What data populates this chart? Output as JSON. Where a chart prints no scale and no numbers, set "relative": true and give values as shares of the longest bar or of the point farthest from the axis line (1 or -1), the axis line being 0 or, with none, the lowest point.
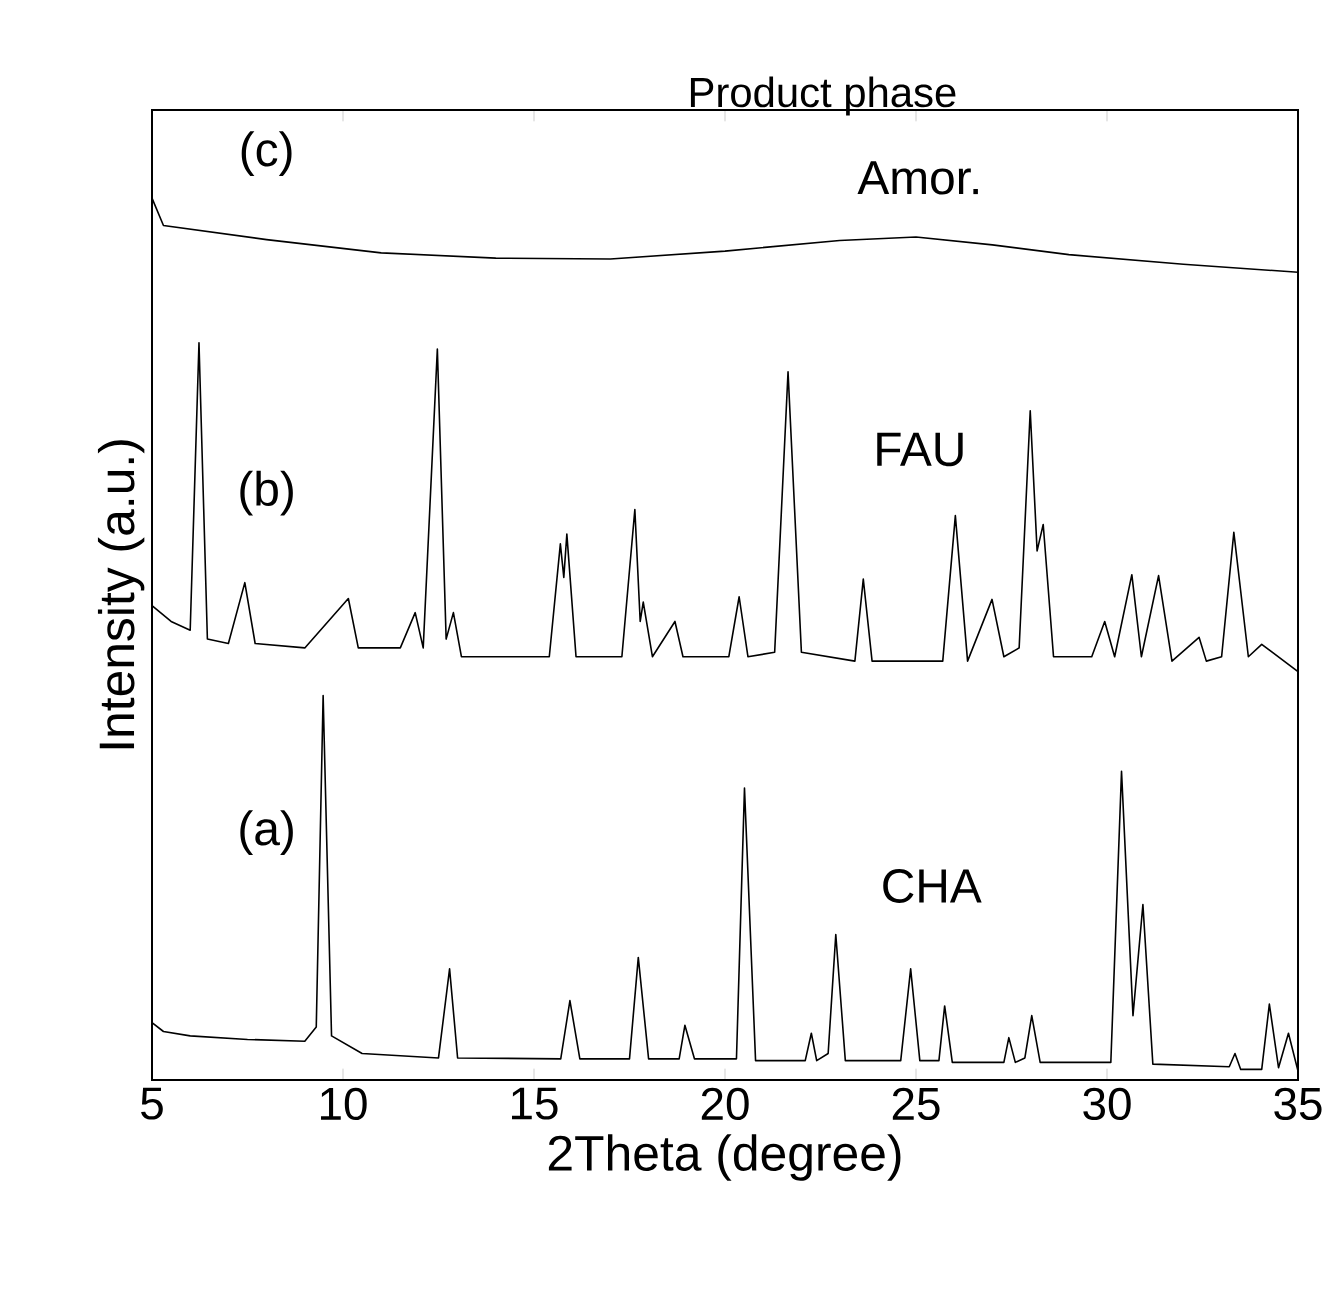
{
  "chart_data": {
    "type": "line",
    "title": "Product phase",
    "xlabel": "2Theta (degree)",
    "ylabel": "Intensity (a.u.)",
    "relative": true,
    "tick_labels": "x",
    "xlim": [
      5,
      35
    ],
    "xticks": [
      5,
      10,
      15,
      20,
      25,
      30,
      35
    ],
    "grid": false,
    "marker": "none",
    "line_style": "solid",
    "series": [
      {
        "color": "#000000",
        "x": [
          5,
          5.3,
          6,
          7.5,
          9.0,
          9.3,
          9.48,
          9.7,
          10.5,
          12.5,
          12.79,
          13.0,
          15.7,
          15.94,
          16.2,
          17.5,
          17.73,
          18.0,
          18.8,
          18.95,
          19.2,
          20.3,
          20.51,
          20.8,
          22.1,
          22.26,
          22.4,
          22.7,
          22.9,
          23.15,
          24.6,
          24.86,
          25.1,
          25.6,
          25.75,
          25.95,
          27.3,
          27.43,
          27.6,
          27.85,
          28.03,
          28.25,
          30.1,
          30.38,
          30.68,
          30.94,
          31.2,
          33.2,
          33.35,
          33.5,
          34.05,
          34.25,
          34.49,
          34.75,
          35
        ],
        "values": [
          0.065,
          0.055,
          0.05,
          0.046,
          0.044,
          0.06,
          0.436,
          0.05,
          0.03,
          0.025,
          0.126,
          0.025,
          0.024,
          0.09,
          0.024,
          0.024,
          0.139,
          0.024,
          0.024,
          0.062,
          0.024,
          0.024,
          0.331,
          0.022,
          0.022,
          0.053,
          0.022,
          0.03,
          0.165,
          0.022,
          0.022,
          0.126,
          0.022,
          0.022,
          0.084,
          0.02,
          0.02,
          0.048,
          0.02,
          0.025,
          0.073,
          0.02,
          0.02,
          0.35,
          0.073,
          0.199,
          0.018,
          0.015,
          0.03,
          0.012,
          0.012,
          0.086,
          0.014,
          0.053,
          0.01
        ]
      },
      {
        "color": "#000000",
        "x": [
          5,
          5.5,
          6.0,
          6.23,
          6.45,
          7.0,
          7.43,
          7.7,
          9,
          10.14,
          10.4,
          11.5,
          11.89,
          12.1,
          12.47,
          12.7,
          12.89,
          13.1,
          15.4,
          15.69,
          15.78,
          15.86,
          16.1,
          17.3,
          17.64,
          17.78,
          17.86,
          18.1,
          18.69,
          18.9,
          20.1,
          20.37,
          20.6,
          21.3,
          21.65,
          22.0,
          23.4,
          23.62,
          23.85,
          25.7,
          26.03,
          26.35,
          26.99,
          27.3,
          27.7,
          27.99,
          28.17,
          28.33,
          28.6,
          29.6,
          29.94,
          30.2,
          30.65,
          30.9,
          31.35,
          31.7,
          32.41,
          32.6,
          33.0,
          33.32,
          33.7,
          34.05,
          35
        ],
        "values": [
          0.538,
          0.52,
          0.51,
          0.836,
          0.5,
          0.495,
          0.564,
          0.495,
          0.49,
          0.546,
          0.49,
          0.49,
          0.53,
          0.49,
          0.829,
          0.5,
          0.53,
          0.48,
          0.48,
          0.608,
          0.57,
          0.619,
          0.48,
          0.48,
          0.647,
          0.52,
          0.542,
          0.48,
          0.52,
          0.48,
          0.48,
          0.548,
          0.48,
          0.485,
          0.803,
          0.485,
          0.475,
          0.568,
          0.475,
          0.475,
          0.64,
          0.475,
          0.545,
          0.48,
          0.49,
          0.759,
          0.6,
          0.63,
          0.48,
          0.48,
          0.52,
          0.48,
          0.573,
          0.48,
          0.572,
          0.475,
          0.502,
          0.475,
          0.48,
          0.621,
          0.48,
          0.494,
          0.463
        ]
      },
      {
        "color": "#000000",
        "x": [
          5,
          5.3,
          8,
          11,
          14,
          17,
          20,
          23,
          25,
          27,
          29,
          32,
          35
        ],
        "values": [
          1.0,
          0.969,
          0.953,
          0.938,
          0.932,
          0.931,
          0.94,
          0.952,
          0.956,
          0.947,
          0.936,
          0.925,
          0.916
        ]
      }
    ],
    "annotations": [
      "(a)",
      "CHA",
      "(b)",
      "FAU",
      "(c)",
      "Amor."
    ]
  }
}
